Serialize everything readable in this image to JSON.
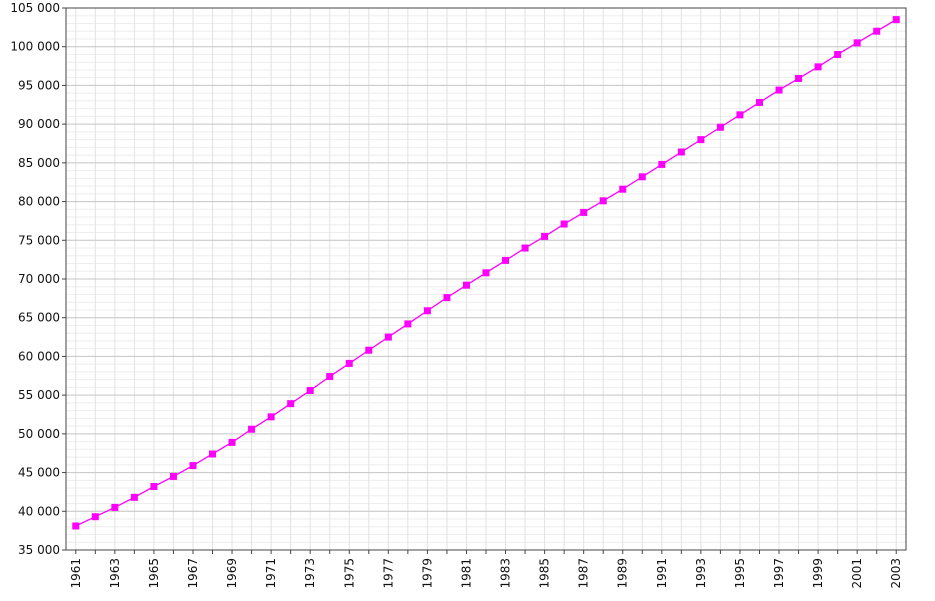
{
  "chart_data": {
    "type": "line",
    "title": "",
    "xlabel": "",
    "ylabel": "",
    "x": [
      1961,
      1962,
      1963,
      1964,
      1965,
      1966,
      1967,
      1968,
      1969,
      1970,
      1971,
      1972,
      1973,
      1974,
      1975,
      1976,
      1977,
      1978,
      1979,
      1980,
      1981,
      1982,
      1983,
      1984,
      1985,
      1986,
      1987,
      1988,
      1989,
      1990,
      1991,
      1992,
      1993,
      1994,
      1995,
      1996,
      1997,
      1998,
      1999,
      2000,
      2001,
      2002,
      2003
    ],
    "series": [
      {
        "color": "#ff00ff",
        "marker": "square",
        "values": [
          38100,
          39300,
          40500,
          41800,
          43200,
          44500,
          45900,
          47400,
          48900,
          50600,
          52200,
          53900,
          55600,
          57400,
          59100,
          60800,
          62500,
          64200,
          65900,
          67600,
          69200,
          70800,
          72400,
          74000,
          75500,
          77100,
          78600,
          80100,
          81600,
          83200,
          84800,
          86400,
          88000,
          89600,
          91200,
          92800,
          94400,
          95900,
          97400,
          99000,
          100500,
          102000,
          103500
        ]
      }
    ],
    "xlim": [
      1960.5,
      2003.5
    ],
    "ylim": [
      35000,
      105000
    ],
    "y_ticks": [
      "35 000",
      "40 000",
      "45 000",
      "50 000",
      "55 000",
      "60 000",
      "65 000",
      "70 000",
      "75 000",
      "80 000",
      "85 000",
      "90 000",
      "95 000",
      "100 000",
      "105 000"
    ],
    "x_tick_labels": [
      "1961",
      "1963",
      "1965",
      "1967",
      "1969",
      "1971",
      "1973",
      "1975",
      "1977",
      "1979",
      "1981",
      "1983",
      "1985",
      "1987",
      "1989",
      "1991",
      "1993",
      "1995",
      "1997",
      "1999",
      "2001",
      "2003"
    ],
    "grid": true,
    "legend": "none"
  }
}
